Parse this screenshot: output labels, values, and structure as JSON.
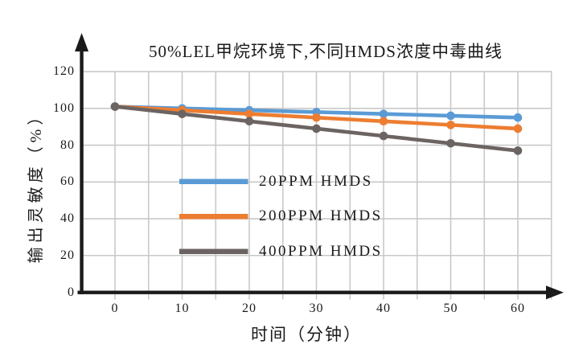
{
  "chart_data": {
    "type": "line",
    "title": "50%LEL甲烷环境下,不同HMDS浓度中毒曲线",
    "xlabel": "时间（分钟）",
    "ylabel": "输出灵敏度（%）",
    "x": [
      0,
      10,
      20,
      30,
      40,
      50,
      60
    ],
    "series": [
      {
        "name": "20PPM HMDS",
        "color": "#5B9BD5",
        "values": [
          101,
          100,
          99,
          98,
          97,
          96,
          95
        ]
      },
      {
        "name": "200PPM HMDS",
        "color": "#ED7D31",
        "values": [
          101,
          99,
          97,
          95,
          93,
          91,
          89
        ]
      },
      {
        "name": "400PPM HMDS",
        "color": "#6B6462",
        "values": [
          101,
          97,
          93,
          89,
          85,
          81,
          77
        ]
      }
    ],
    "x_ticks": [
      0,
      10,
      20,
      30,
      40,
      50,
      60
    ],
    "y_ticks": [
      0,
      20,
      40,
      60,
      80,
      100,
      120
    ],
    "xlim": [
      -5,
      65
    ],
    "ylim": [
      0,
      130
    ],
    "grid": {
      "h_values": [
        20,
        40,
        60,
        80,
        100,
        120
      ],
      "v_minor_step": 5,
      "color": "#C9C9C9"
    },
    "legend_position": "inside-left",
    "marker": "circle",
    "axis_color": "#1a1a1a",
    "background": "#ffffff"
  }
}
